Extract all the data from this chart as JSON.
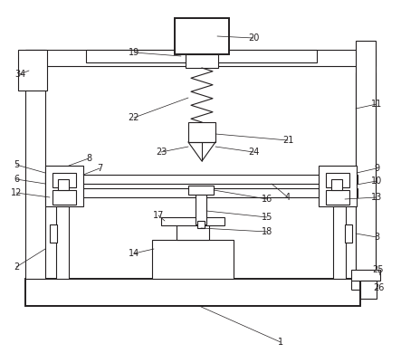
{
  "fig_width": 4.43,
  "fig_height": 3.9,
  "dpi": 100,
  "line_color": "#231f20",
  "bg_color": "#ffffff",
  "lw": 0.8,
  "lw_thick": 1.4
}
